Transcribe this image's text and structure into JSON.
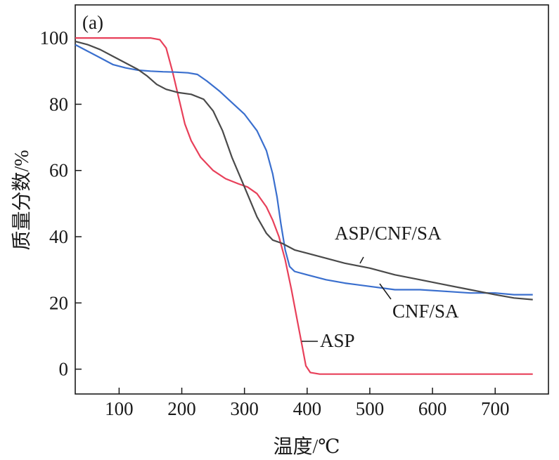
{
  "chart_data": {
    "type": "line",
    "panel_label": "(a)",
    "xlabel": "温度/℃",
    "ylabel": "质量分数/%",
    "xlim": [
      30,
      785
    ],
    "ylim": [
      -7.5,
      110
    ],
    "x_ticks": [
      100,
      200,
      300,
      400,
      500,
      600,
      700
    ],
    "y_ticks": [
      0,
      20,
      40,
      60,
      80,
      100
    ],
    "grid": false,
    "series": [
      {
        "name": "ASP/CNF/SA",
        "color": "#4a4a4a",
        "points": [
          [
            30,
            99
          ],
          [
            50,
            98
          ],
          [
            70,
            96.5
          ],
          [
            90,
            94.5
          ],
          [
            110,
            92.5
          ],
          [
            130,
            90.5
          ],
          [
            145,
            88.5
          ],
          [
            160,
            86
          ],
          [
            175,
            84.5
          ],
          [
            195,
            83.5
          ],
          [
            215,
            83
          ],
          [
            235,
            81.5
          ],
          [
            250,
            78
          ],
          [
            265,
            72
          ],
          [
            280,
            64
          ],
          [
            300,
            55
          ],
          [
            320,
            46
          ],
          [
            335,
            41
          ],
          [
            345,
            39
          ],
          [
            360,
            38
          ],
          [
            380,
            36
          ],
          [
            400,
            35
          ],
          [
            430,
            33.5
          ],
          [
            460,
            32
          ],
          [
            500,
            30.5
          ],
          [
            540,
            28.5
          ],
          [
            580,
            27
          ],
          [
            620,
            25.5
          ],
          [
            660,
            24
          ],
          [
            700,
            22.5
          ],
          [
            730,
            21.5
          ],
          [
            760,
            21
          ]
        ]
      },
      {
        "name": "CNF/SA",
        "color": "#3a6fce",
        "points": [
          [
            30,
            98
          ],
          [
            50,
            96
          ],
          [
            70,
            94
          ],
          [
            90,
            92
          ],
          [
            110,
            91
          ],
          [
            130,
            90.3
          ],
          [
            150,
            90
          ],
          [
            170,
            89.8
          ],
          [
            190,
            89.7
          ],
          [
            210,
            89.5
          ],
          [
            225,
            89
          ],
          [
            240,
            87
          ],
          [
            260,
            84
          ],
          [
            280,
            80.5
          ],
          [
            300,
            77
          ],
          [
            320,
            72
          ],
          [
            335,
            66
          ],
          [
            345,
            59
          ],
          [
            352,
            52
          ],
          [
            358,
            44
          ],
          [
            365,
            36
          ],
          [
            372,
            31
          ],
          [
            380,
            29.5
          ],
          [
            400,
            28.5
          ],
          [
            430,
            27
          ],
          [
            460,
            26
          ],
          [
            500,
            25
          ],
          [
            540,
            24
          ],
          [
            580,
            24
          ],
          [
            620,
            23.5
          ],
          [
            660,
            23
          ],
          [
            700,
            23
          ],
          [
            730,
            22.5
          ],
          [
            760,
            22.5
          ]
        ]
      },
      {
        "name": "ASP",
        "color": "#e8405a",
        "points": [
          [
            30,
            100
          ],
          [
            80,
            100
          ],
          [
            130,
            100
          ],
          [
            150,
            100
          ],
          [
            165,
            99.5
          ],
          [
            175,
            97
          ],
          [
            185,
            90
          ],
          [
            195,
            82
          ],
          [
            205,
            74
          ],
          [
            215,
            69
          ],
          [
            230,
            64
          ],
          [
            250,
            60
          ],
          [
            270,
            57.5
          ],
          [
            290,
            56
          ],
          [
            305,
            55
          ],
          [
            320,
            53
          ],
          [
            335,
            49
          ],
          [
            345,
            45
          ],
          [
            355,
            40
          ],
          [
            365,
            33
          ],
          [
            375,
            24
          ],
          [
            385,
            14
          ],
          [
            392,
            7
          ],
          [
            398,
            1
          ],
          [
            405,
            -1
          ],
          [
            420,
            -1.5
          ],
          [
            500,
            -1.5
          ],
          [
            600,
            -1.5
          ],
          [
            700,
            -1.5
          ],
          [
            760,
            -1.5
          ]
        ]
      }
    ],
    "annotations": [
      {
        "text": "ASP/CNF/SA",
        "series": "ASP/CNF/SA"
      },
      {
        "text": "CNF/SA",
        "series": "CNF/SA"
      },
      {
        "text": "ASP",
        "series": "ASP"
      }
    ]
  }
}
